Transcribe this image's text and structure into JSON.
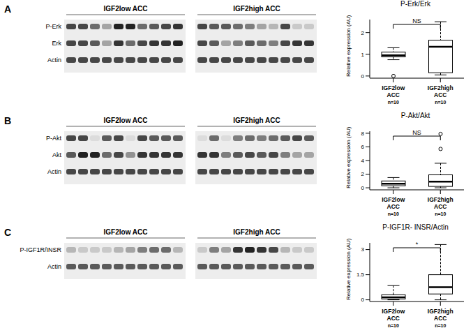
{
  "panels": [
    {
      "letter": "A",
      "blot": {
        "groups": [
          "IGF2low ACC",
          "IGF2high ACC"
        ],
        "rows": [
          {
            "label": "P-Erk",
            "intensity": [
              0.8,
              0.8,
              0.6,
              0.3,
              1,
              1,
              0.6,
              0.7,
              0.8,
              0.9,
              0.8,
              0.7,
              0.7,
              0.6,
              0.5,
              0.3,
              0.2,
              0.8,
              0.1,
              0.1
            ]
          },
          {
            "label": "Erk",
            "intensity": [
              0.8,
              0.8,
              0.7,
              0.3,
              0.9,
              0.6,
              0.8,
              0.9,
              0.9,
              1,
              0.8,
              0.7,
              0.3,
              0.5,
              0.7,
              0.6,
              0.5,
              0.8,
              0.9,
              0.9
            ]
          },
          {
            "label": "Actin",
            "intensity": [
              0.8,
              0.8,
              0.8,
              0.8,
              0.8,
              0.8,
              0.8,
              0.8,
              0.8,
              0.8,
              0.8,
              0.8,
              0.8,
              0.8,
              0.8,
              0.8,
              0.8,
              0.8,
              0.8,
              0.8
            ]
          }
        ]
      }
    },
    {
      "letter": "B",
      "blot": {
        "groups": [
          "IGF2low ACC",
          "IGF2high ACC"
        ],
        "rows": [
          {
            "label": "P-Akt",
            "intensity": [
              0.8,
              0.8,
              0,
              0.7,
              0.8,
              0,
              0.8,
              0.7,
              0.7,
              0.7,
              0,
              0.6,
              0,
              0.5,
              0.6,
              0.5,
              0.6,
              0.7,
              0.8,
              0.7
            ]
          },
          {
            "label": "Akt",
            "intensity": [
              0.7,
              1,
              1,
              0.6,
              0.8,
              0.4,
              0.9,
              0.9,
              0.9,
              0.9,
              0.9,
              0.9,
              0.5,
              0.7,
              0.8,
              0.7,
              0.8,
              0.5,
              0.3,
              0.3
            ]
          },
          {
            "label": "Actin",
            "intensity": [
              0.8,
              0.8,
              0.8,
              0.8,
              0.8,
              0.8,
              0.8,
              0.8,
              0.8,
              0.8,
              0.8,
              0.8,
              0.8,
              0.8,
              0.8,
              0.8,
              0.8,
              0.8,
              0.8,
              0.8
            ]
          }
        ]
      }
    },
    {
      "letter": "C",
      "blot": {
        "groups": [
          "IGF2low ACC",
          "IGF2high ACC"
        ],
        "rows": [
          {
            "label": "P-IGF1R/INSR",
            "intensity": [
              0.2,
              0.1,
              0.1,
              0.1,
              0.2,
              0.3,
              0.5,
              0.6,
              0.6,
              0.2,
              0.1,
              0.5,
              0.3,
              0.9,
              1,
              0.9,
              0.8,
              0.2,
              0.1,
              0.1
            ]
          },
          {
            "label": "Actin",
            "intensity": [
              0.7,
              0.7,
              0.7,
              0.7,
              0.7,
              0.7,
              0.7,
              0.7,
              0.7,
              0.7,
              0.7,
              0.7,
              0.7,
              0.7,
              0.7,
              0.7,
              0.7,
              0.7,
              0.7,
              0.7
            ]
          }
        ]
      }
    }
  ],
  "chart_data": [
    {
      "type": "box",
      "title": "P-Erk/Erk",
      "y_label": "Relative expression (AU)",
      "categories": [
        "IGF2low ACC",
        "IGF2high ACC"
      ],
      "n_labels": [
        "n=10",
        "n=10"
      ],
      "significance": "NS",
      "boxes": [
        {
          "whisker_low": 0.75,
          "q1": 0.88,
          "median": 0.95,
          "q3": 1.1,
          "whisker_high": 1.3,
          "outliers": [
            0
          ]
        },
        {
          "whisker_low": 0.05,
          "q1": 0.15,
          "median": 1.35,
          "q3": 1.65,
          "whisker_high": 2.5,
          "outliers": []
        }
      ],
      "ylim": [
        -0.1,
        2.6
      ],
      "yticks": [
        0,
        1,
        2
      ]
    },
    {
      "type": "box",
      "title": "P-Akt/Akt",
      "y_label": "Relative expression (AU)",
      "categories": [
        "IGF2low ACC",
        "IGF2high ACC"
      ],
      "n_labels": [
        "n=10",
        "n=10"
      ],
      "significance": "NS",
      "boxes": [
        {
          "whisker_low": 0,
          "q1": 0.3,
          "median": 0.6,
          "q3": 1.0,
          "whisker_high": 1.5,
          "outliers": []
        },
        {
          "whisker_low": 0,
          "q1": 0.2,
          "median": 0.9,
          "q3": 1.9,
          "whisker_high": 3.6,
          "outliers": [
            5.7,
            7.9
          ]
        }
      ],
      "ylim": [
        -0.3,
        8.3
      ],
      "yticks": [
        0,
        2,
        4,
        6,
        8
      ]
    },
    {
      "type": "box",
      "title": "P-IGF1R- INSR/Actin",
      "y_label": "Relative expression (AU)",
      "categories": [
        "IGF2low ACC",
        "IGF2high ACC"
      ],
      "n_labels": [
        "n=10",
        "n=10"
      ],
      "significance": "*",
      "boxes": [
        {
          "whisker_low": 0,
          "q1": 0.05,
          "median": 0.15,
          "q3": 0.3,
          "whisker_high": 0.85,
          "outliers": []
        },
        {
          "whisker_low": 0,
          "q1": 0.35,
          "median": 0.75,
          "q3": 1.5,
          "whisker_high": 3.3,
          "outliers": []
        }
      ],
      "ylim": [
        -0.1,
        3.4
      ],
      "yticks": [
        0,
        1.5,
        3
      ]
    }
  ]
}
